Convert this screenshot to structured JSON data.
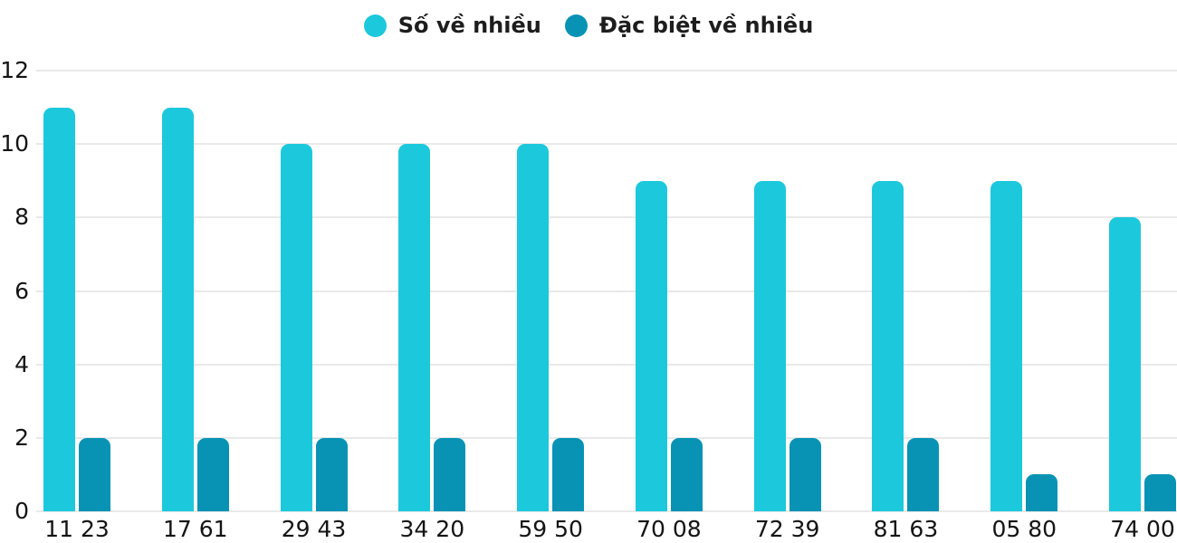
{
  "legend": {
    "items": [
      {
        "label": "Số về nhiều"
      },
      {
        "label": "Đặc biệt về nhiều"
      }
    ]
  },
  "chart_data": {
    "type": "bar",
    "title": "",
    "xlabel": "",
    "ylabel": "",
    "categories": [
      "11 23",
      "17 61",
      "29 43",
      "34 20",
      "59 50",
      "70 08",
      "72 39",
      "81 63",
      "05 80",
      "74 00"
    ],
    "series": [
      {
        "name": "Số về nhiều",
        "color": "#1cc8dc",
        "values": [
          11,
          11,
          10,
          10,
          10,
          9,
          9,
          9,
          9,
          8
        ]
      },
      {
        "name": "Đặc biệt về nhiều",
        "color": "#0893b5",
        "values": [
          2,
          2,
          2,
          2,
          2,
          2,
          2,
          2,
          1,
          1
        ]
      }
    ],
    "ylim": [
      0,
      12
    ],
    "yticks": [
      0,
      2,
      4,
      6,
      8,
      10,
      12
    ],
    "grid": true,
    "legend_position": "top-center"
  },
  "colors": {
    "series1": "#1cc8dc",
    "series2": "#0893b5",
    "gridline": "#e9e9e9",
    "text": "#141414",
    "background": "#ffffff"
  }
}
